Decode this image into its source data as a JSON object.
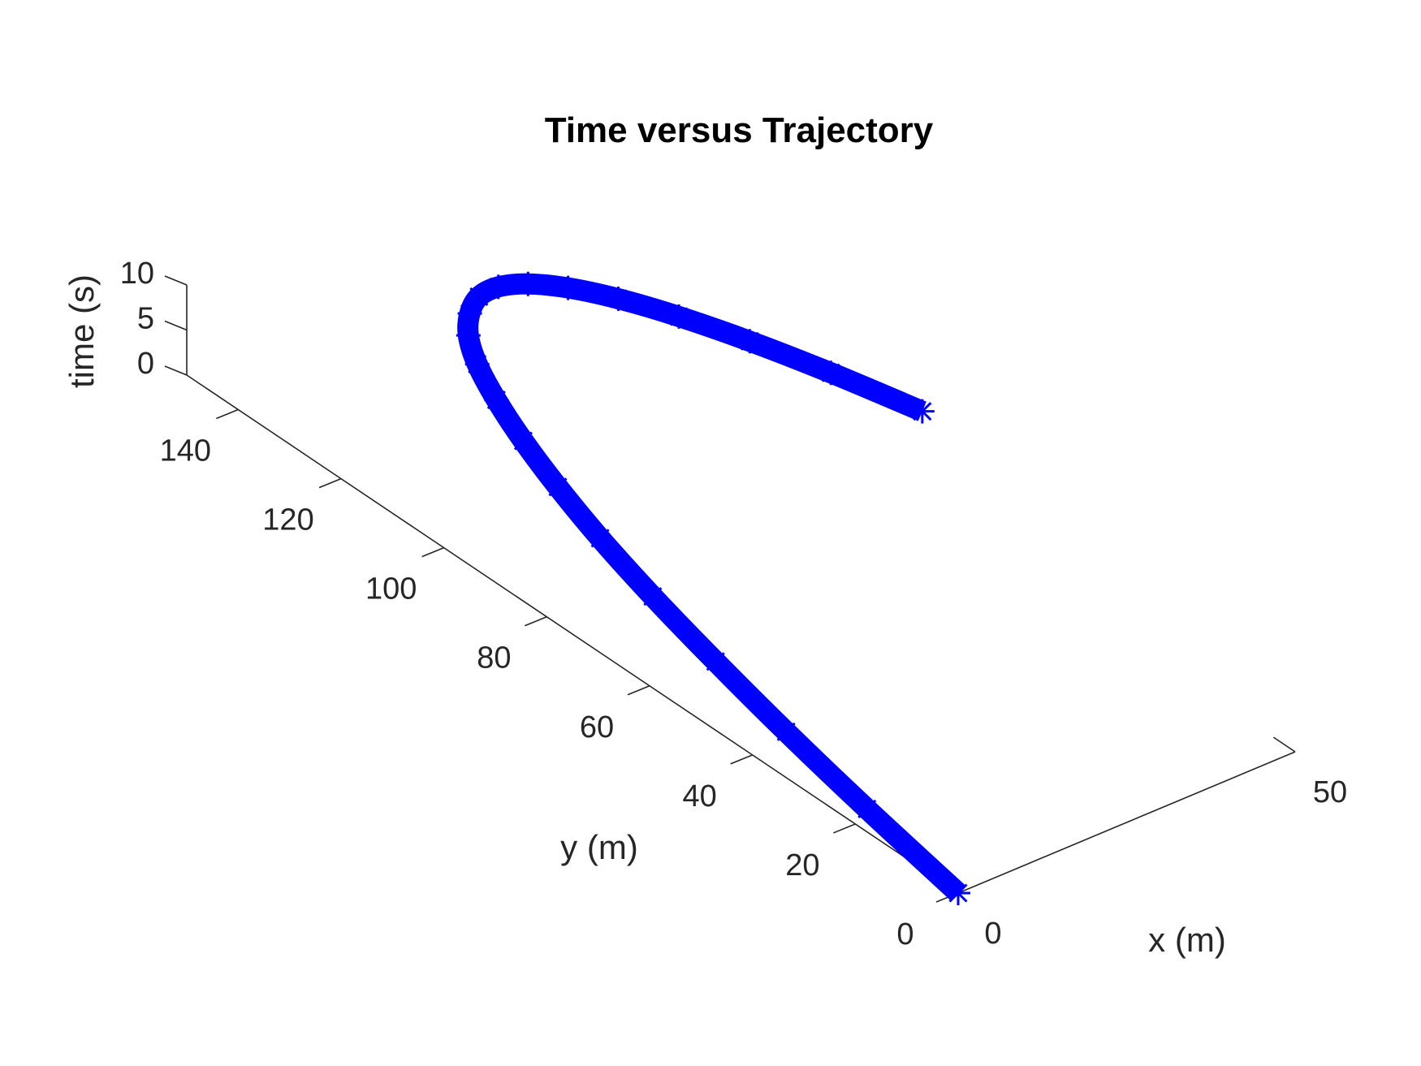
{
  "chart_data": {
    "type": "line",
    "dimensions": "3d",
    "title": "Time versus Trajectory",
    "xlabel": "x (m)",
    "ylabel": "y (m)",
    "zlabel": "time (s)",
    "xlim": [
      0,
      50
    ],
    "ylim": [
      0,
      150
    ],
    "zlim": [
      0,
      10
    ],
    "xticks": [
      0,
      50
    ],
    "yticks": [
      0,
      20,
      40,
      60,
      80,
      100,
      120,
      140
    ],
    "zticks": [
      0,
      5,
      10
    ],
    "grid": false,
    "colors": {
      "line": "#0000ff",
      "axes": "#262626",
      "title": "#000000",
      "background": "#ffffff"
    },
    "series": [
      {
        "marker": "star",
        "x": [
          0,
          2.5,
          5,
          7.5,
          10,
          12.5,
          15,
          17.5,
          20,
          22.5,
          25,
          27.5,
          30,
          32.5,
          35,
          37.5,
          40,
          42.5,
          45,
          47.5,
          50
        ],
        "y": [
          0,
          21,
          40,
          57,
          72.5,
          86,
          97.5,
          107.5,
          116,
          123,
          128,
          131,
          132.5,
          132,
          129.5,
          125,
          118.5,
          110,
          99.5,
          87,
          72.5
        ],
        "z": [
          0,
          0.5,
          1,
          1.5,
          2,
          2.5,
          3,
          3.5,
          4,
          4.5,
          5,
          5.5,
          6,
          6.5,
          7,
          7.5,
          8,
          8.5,
          9,
          9.5,
          10
        ]
      }
    ]
  }
}
